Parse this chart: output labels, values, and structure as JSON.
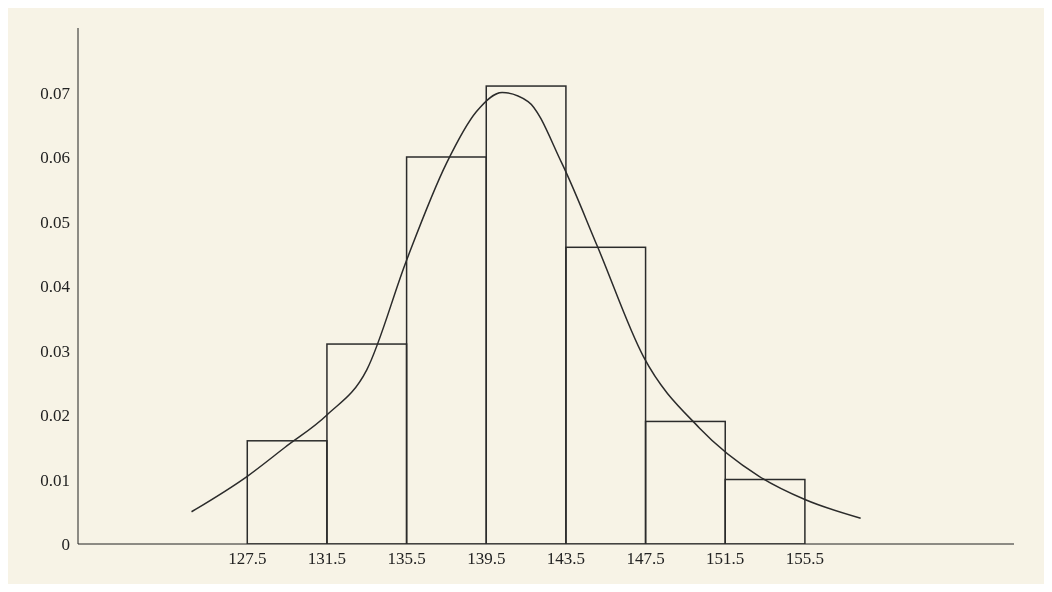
{
  "chart_data": {
    "type": "histogram",
    "series": [
      {
        "color": "#2b2b2b",
        "bins": [
          127.5,
          131.5,
          135.5,
          139.5,
          143.5,
          147.5,
          151.5,
          155.5
        ],
        "values": [
          0.016,
          0.031,
          0.06,
          0.071,
          0.046,
          0.019,
          0.01
        ]
      },
      {
        "type": "line",
        "color": "#2b2b2b",
        "x": [
          124.7,
          127.5,
          129.4,
          131.5,
          133.5,
          135.5,
          137.5,
          139.0,
          140.3,
          141.6,
          143.3,
          145.1,
          147.4,
          150.2,
          153.2,
          155.5,
          158.3
        ],
        "values": [
          0.005,
          0.0105,
          0.015,
          0.02,
          0.027,
          0.044,
          0.059,
          0.067,
          0.07,
          0.0686,
          0.059,
          0.046,
          0.029,
          0.018,
          0.0105,
          0.0069,
          0.004
        ]
      }
    ],
    "xlim": [
      119,
      166
    ],
    "xticks": [
      127.5,
      131.5,
      135.5,
      139.5,
      143.5,
      147.5,
      151.5,
      155.5
    ],
    "ylim": [
      0,
      0.08
    ],
    "yticks": [
      0,
      0.01,
      0.02,
      0.03,
      0.04,
      0.05,
      0.06,
      0.07
    ],
    "grid": false
  }
}
